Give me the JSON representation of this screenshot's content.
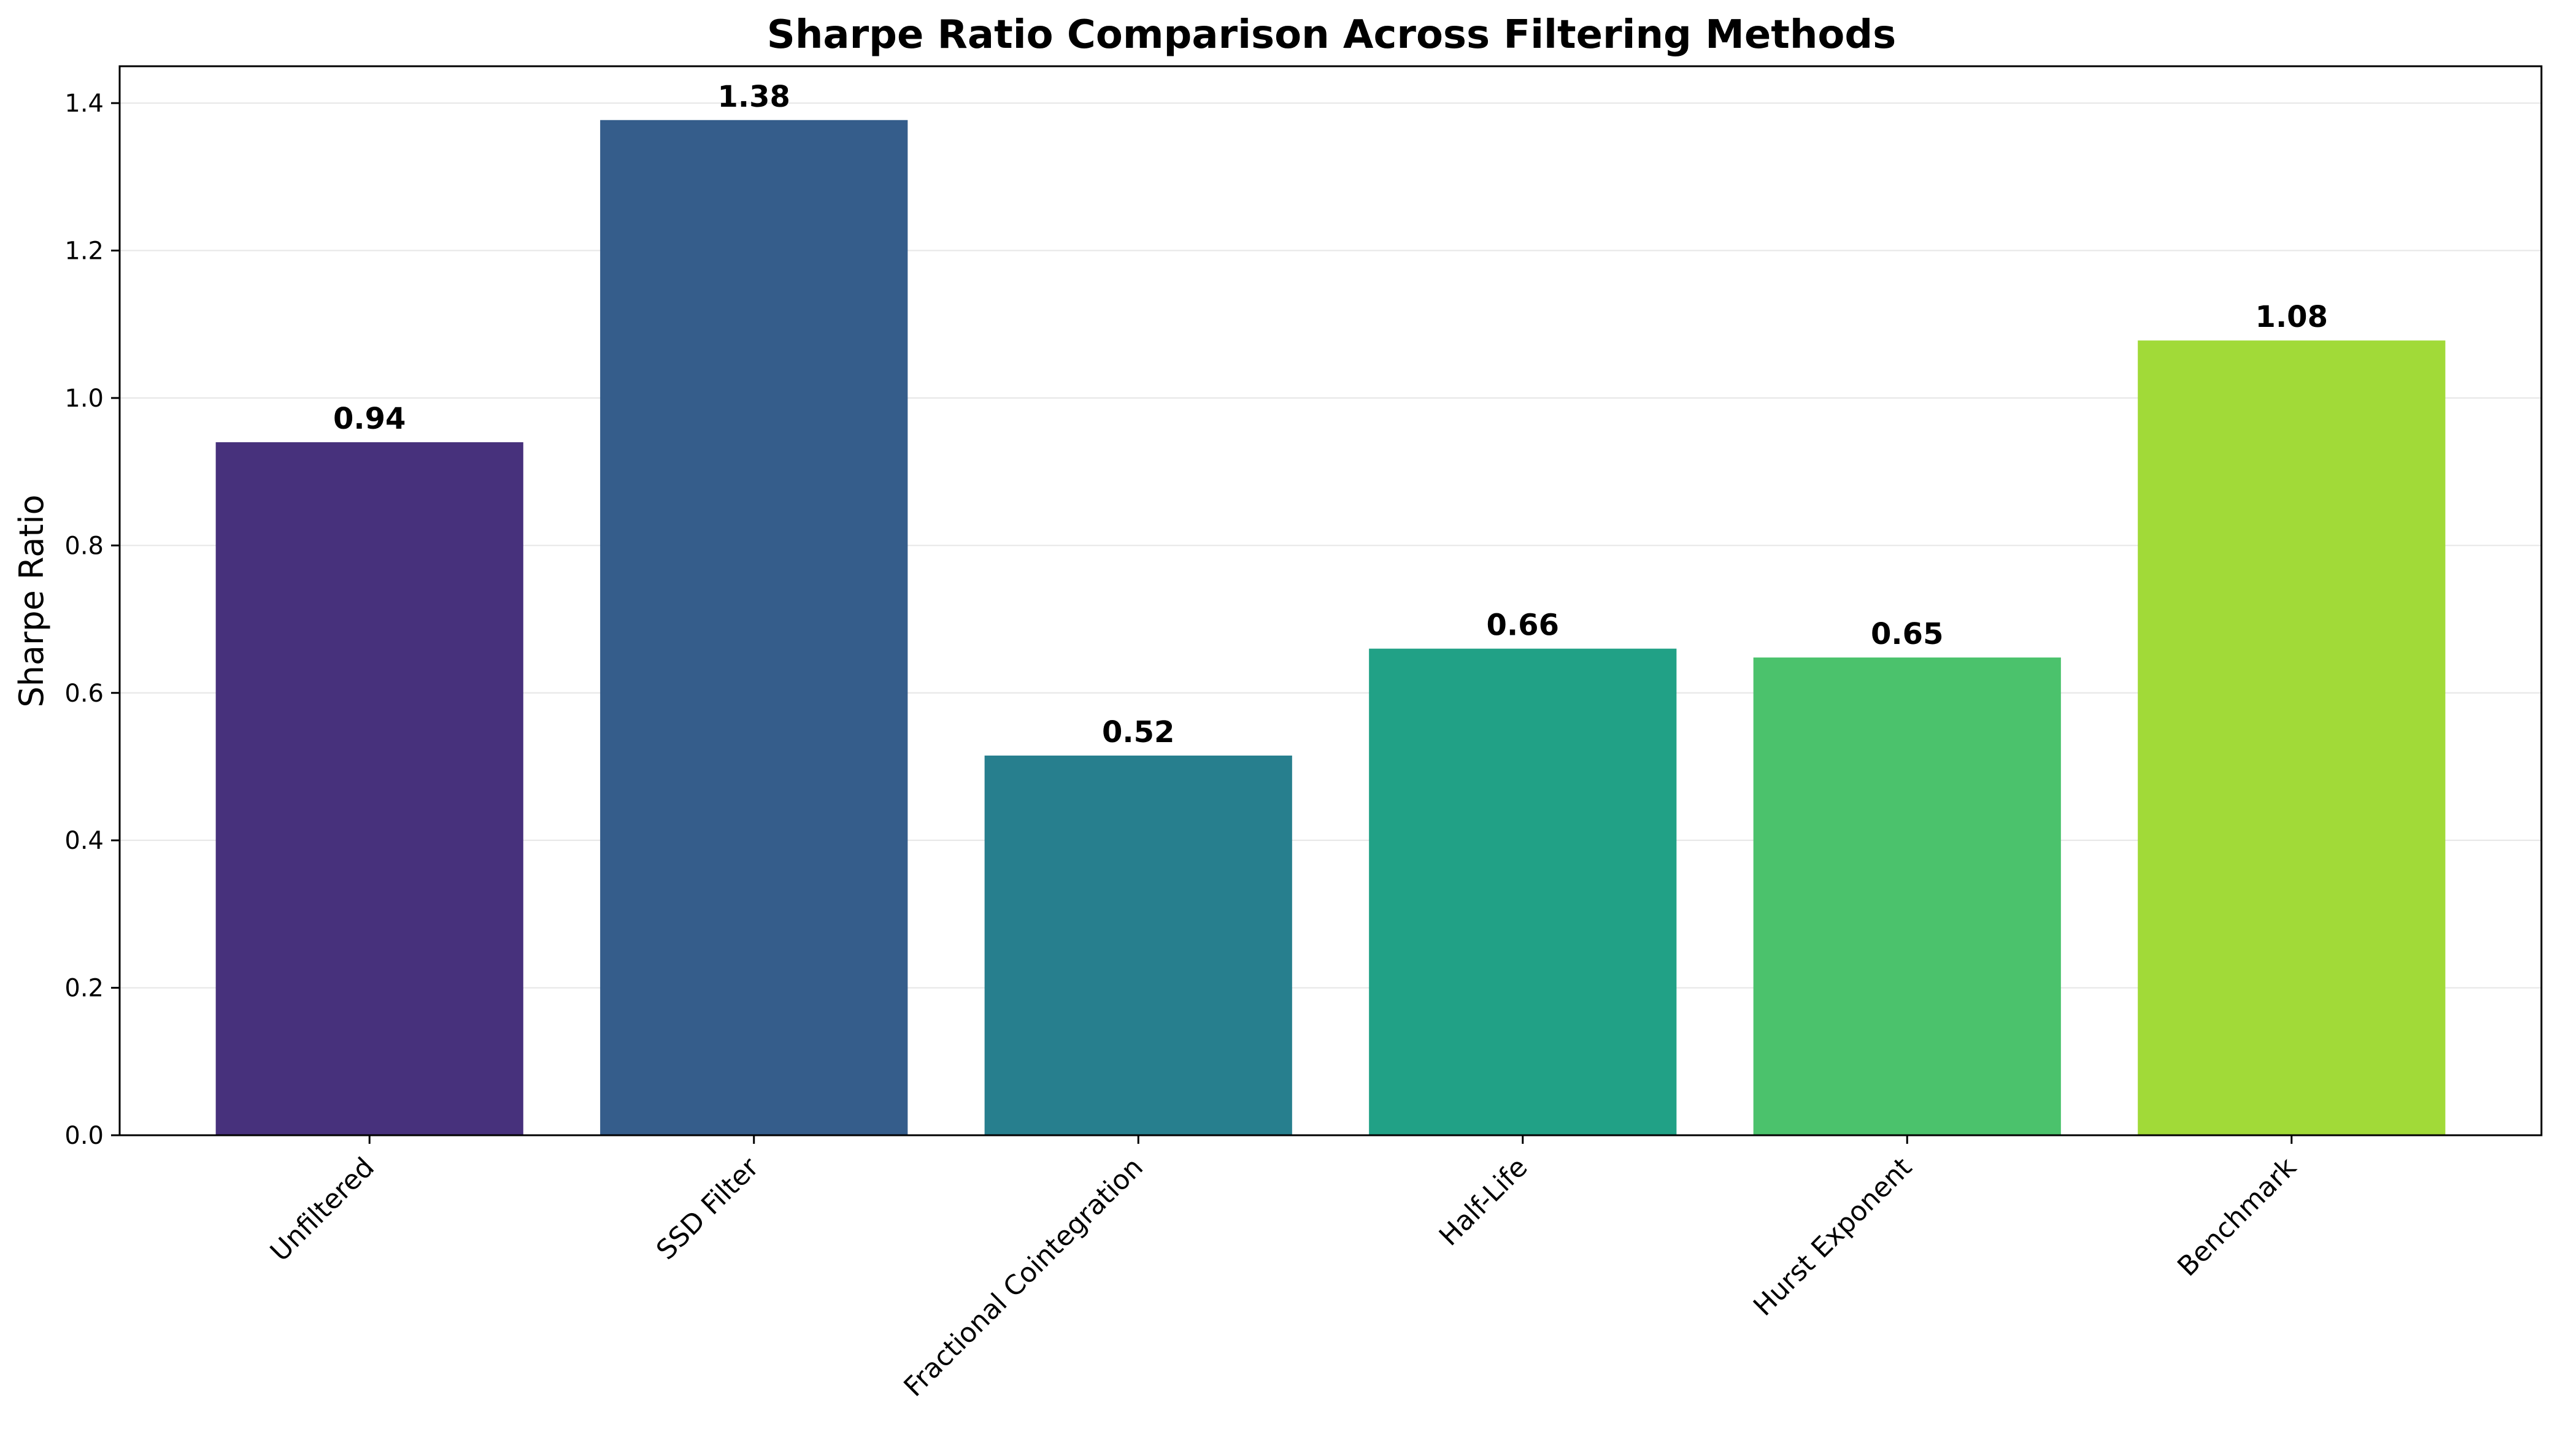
{
  "chart_data": {
    "type": "bar",
    "title": "Sharpe Ratio Comparison Across Filtering Methods",
    "xlabel": "",
    "ylabel": "Sharpe Ratio",
    "categories": [
      "Unfiltered",
      "SSD Filter",
      "Fractional Cointegration",
      "Half-Life",
      "Hurst Exponent",
      "Benchmark"
    ],
    "values": [
      0.94,
      1.377,
      0.515,
      0.66,
      0.648,
      1.078
    ],
    "data_labels": [
      "0.94",
      "1.38",
      "0.52",
      "0.66",
      "0.65",
      "1.08"
    ],
    "colors": [
      "#47317c",
      "#355d8b",
      "#277f8e",
      "#21a186",
      "#4bc26c",
      "#a1da38"
    ],
    "ylim": [
      0,
      1.45
    ],
    "yticks": [
      0.0,
      0.2,
      0.4,
      0.6,
      0.8,
      1.0,
      1.2,
      1.4
    ],
    "ytick_labels": [
      "0.0",
      "0.2",
      "0.4",
      "0.6",
      "0.8",
      "1.0",
      "1.2",
      "1.4"
    ],
    "grid": "y-axis, light",
    "legend": "none",
    "xtick_rotation": "45 degrees"
  }
}
